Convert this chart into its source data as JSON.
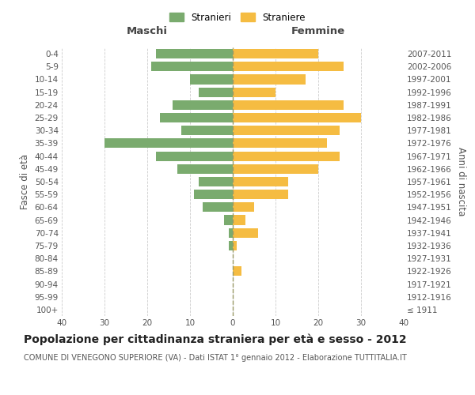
{
  "age_groups": [
    "100+",
    "95-99",
    "90-94",
    "85-89",
    "80-84",
    "75-79",
    "70-74",
    "65-69",
    "60-64",
    "55-59",
    "50-54",
    "45-49",
    "40-44",
    "35-39",
    "30-34",
    "25-29",
    "20-24",
    "15-19",
    "10-14",
    "5-9",
    "0-4"
  ],
  "birth_years": [
    "≤ 1911",
    "1912-1916",
    "1917-1921",
    "1922-1926",
    "1927-1931",
    "1932-1936",
    "1937-1941",
    "1942-1946",
    "1947-1951",
    "1952-1956",
    "1957-1961",
    "1962-1966",
    "1967-1971",
    "1972-1976",
    "1977-1981",
    "1982-1986",
    "1987-1991",
    "1992-1996",
    "1997-2001",
    "2002-2006",
    "2007-2011"
  ],
  "maschi": [
    0,
    0,
    0,
    0,
    0,
    1,
    1,
    2,
    7,
    9,
    8,
    13,
    18,
    30,
    12,
    17,
    14,
    8,
    10,
    19,
    18
  ],
  "femmine": [
    0,
    0,
    0,
    2,
    0,
    1,
    6,
    3,
    5,
    13,
    13,
    20,
    25,
    22,
    25,
    30,
    26,
    10,
    17,
    26,
    20
  ],
  "male_color": "#7aab6e",
  "female_color": "#f5bc42",
  "background_color": "#ffffff",
  "grid_color": "#cccccc",
  "title": "Popolazione per cittadinanza straniera per età e sesso - 2012",
  "subtitle": "COMUNE DI VENEGONO SUPERIORE (VA) - Dati ISTAT 1° gennaio 2012 - Elaborazione TUTTITALIA.IT",
  "xlabel_left": "Maschi",
  "xlabel_right": "Femmine",
  "ylabel_left": "Fasce di età",
  "ylabel_right": "Anni di nascita",
  "legend_male": "Stranieri",
  "legend_female": "Straniere",
  "xlim": 40,
  "title_fontsize": 10,
  "subtitle_fontsize": 7,
  "tick_fontsize": 7.5,
  "bar_height": 0.75
}
